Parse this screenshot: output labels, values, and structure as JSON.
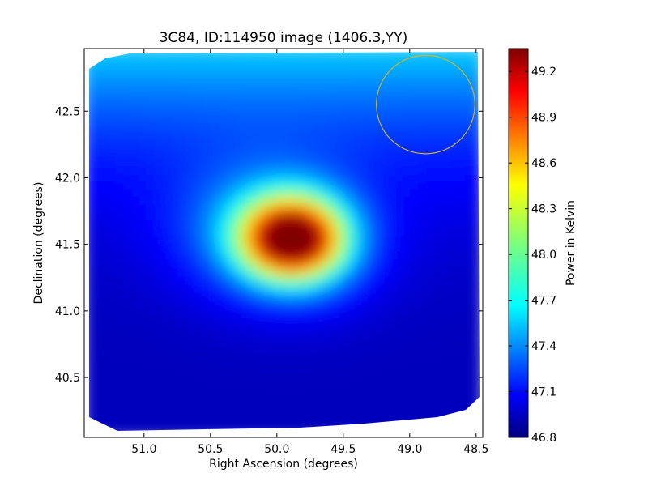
{
  "chart_data": {
    "type": "heatmap",
    "title": "3C84, ID:114950 image (1406.3,YY)",
    "xlabel": "Right Ascension (degrees)",
    "ylabel": "Declination (degrees)",
    "xlim": [
      51.45,
      48.45
    ],
    "ylim": [
      40.05,
      42.97
    ],
    "x_ticks": [
      51.0,
      50.5,
      50.0,
      49.5,
      49.0,
      48.5
    ],
    "x_tick_labels": [
      "51.0",
      "50.5",
      "50.0",
      "49.5",
      "49.0",
      "48.5"
    ],
    "y_ticks": [
      40.5,
      41.0,
      41.5,
      42.0,
      42.5
    ],
    "y_tick_labels": [
      "40.5",
      "41.0",
      "41.5",
      "42.0",
      "42.5"
    ],
    "colorbar": {
      "label": "Power in Kelvin",
      "range": [
        46.8,
        49.35
      ],
      "ticks": [
        46.8,
        47.1,
        47.4,
        47.7,
        48.0,
        48.3,
        48.6,
        48.9,
        49.2
      ],
      "tick_labels": [
        "46.8",
        "47.1",
        "47.4",
        "47.7",
        "48.0",
        "48.3",
        "48.6",
        "48.9",
        "49.2"
      ],
      "colormap": "jet"
    },
    "grid": false,
    "background_level": 47.1,
    "sources": [
      {
        "ra": 49.88,
        "dec": 41.55,
        "peak": 2.25,
        "sigma_ra": 0.25,
        "sigma_dec": 0.2
      },
      {
        "ra": 50.08,
        "dec": 41.6,
        "peak": 0.55,
        "sigma_ra": 0.45,
        "sigma_dec": 0.35
      },
      {
        "ra": 49.7,
        "dec": 41.45,
        "peak": 0.25,
        "sigma_ra": 0.35,
        "sigma_dec": 0.3
      }
    ],
    "gradient": {
      "low_dec": 40.3,
      "high_dec": 42.9,
      "low_offset": -0.15,
      "high_offset": 0.5
    },
    "annotation_circle": {
      "ra": 48.88,
      "dec": 42.55,
      "radius_dec": 0.37,
      "color": "#c8b432"
    }
  }
}
